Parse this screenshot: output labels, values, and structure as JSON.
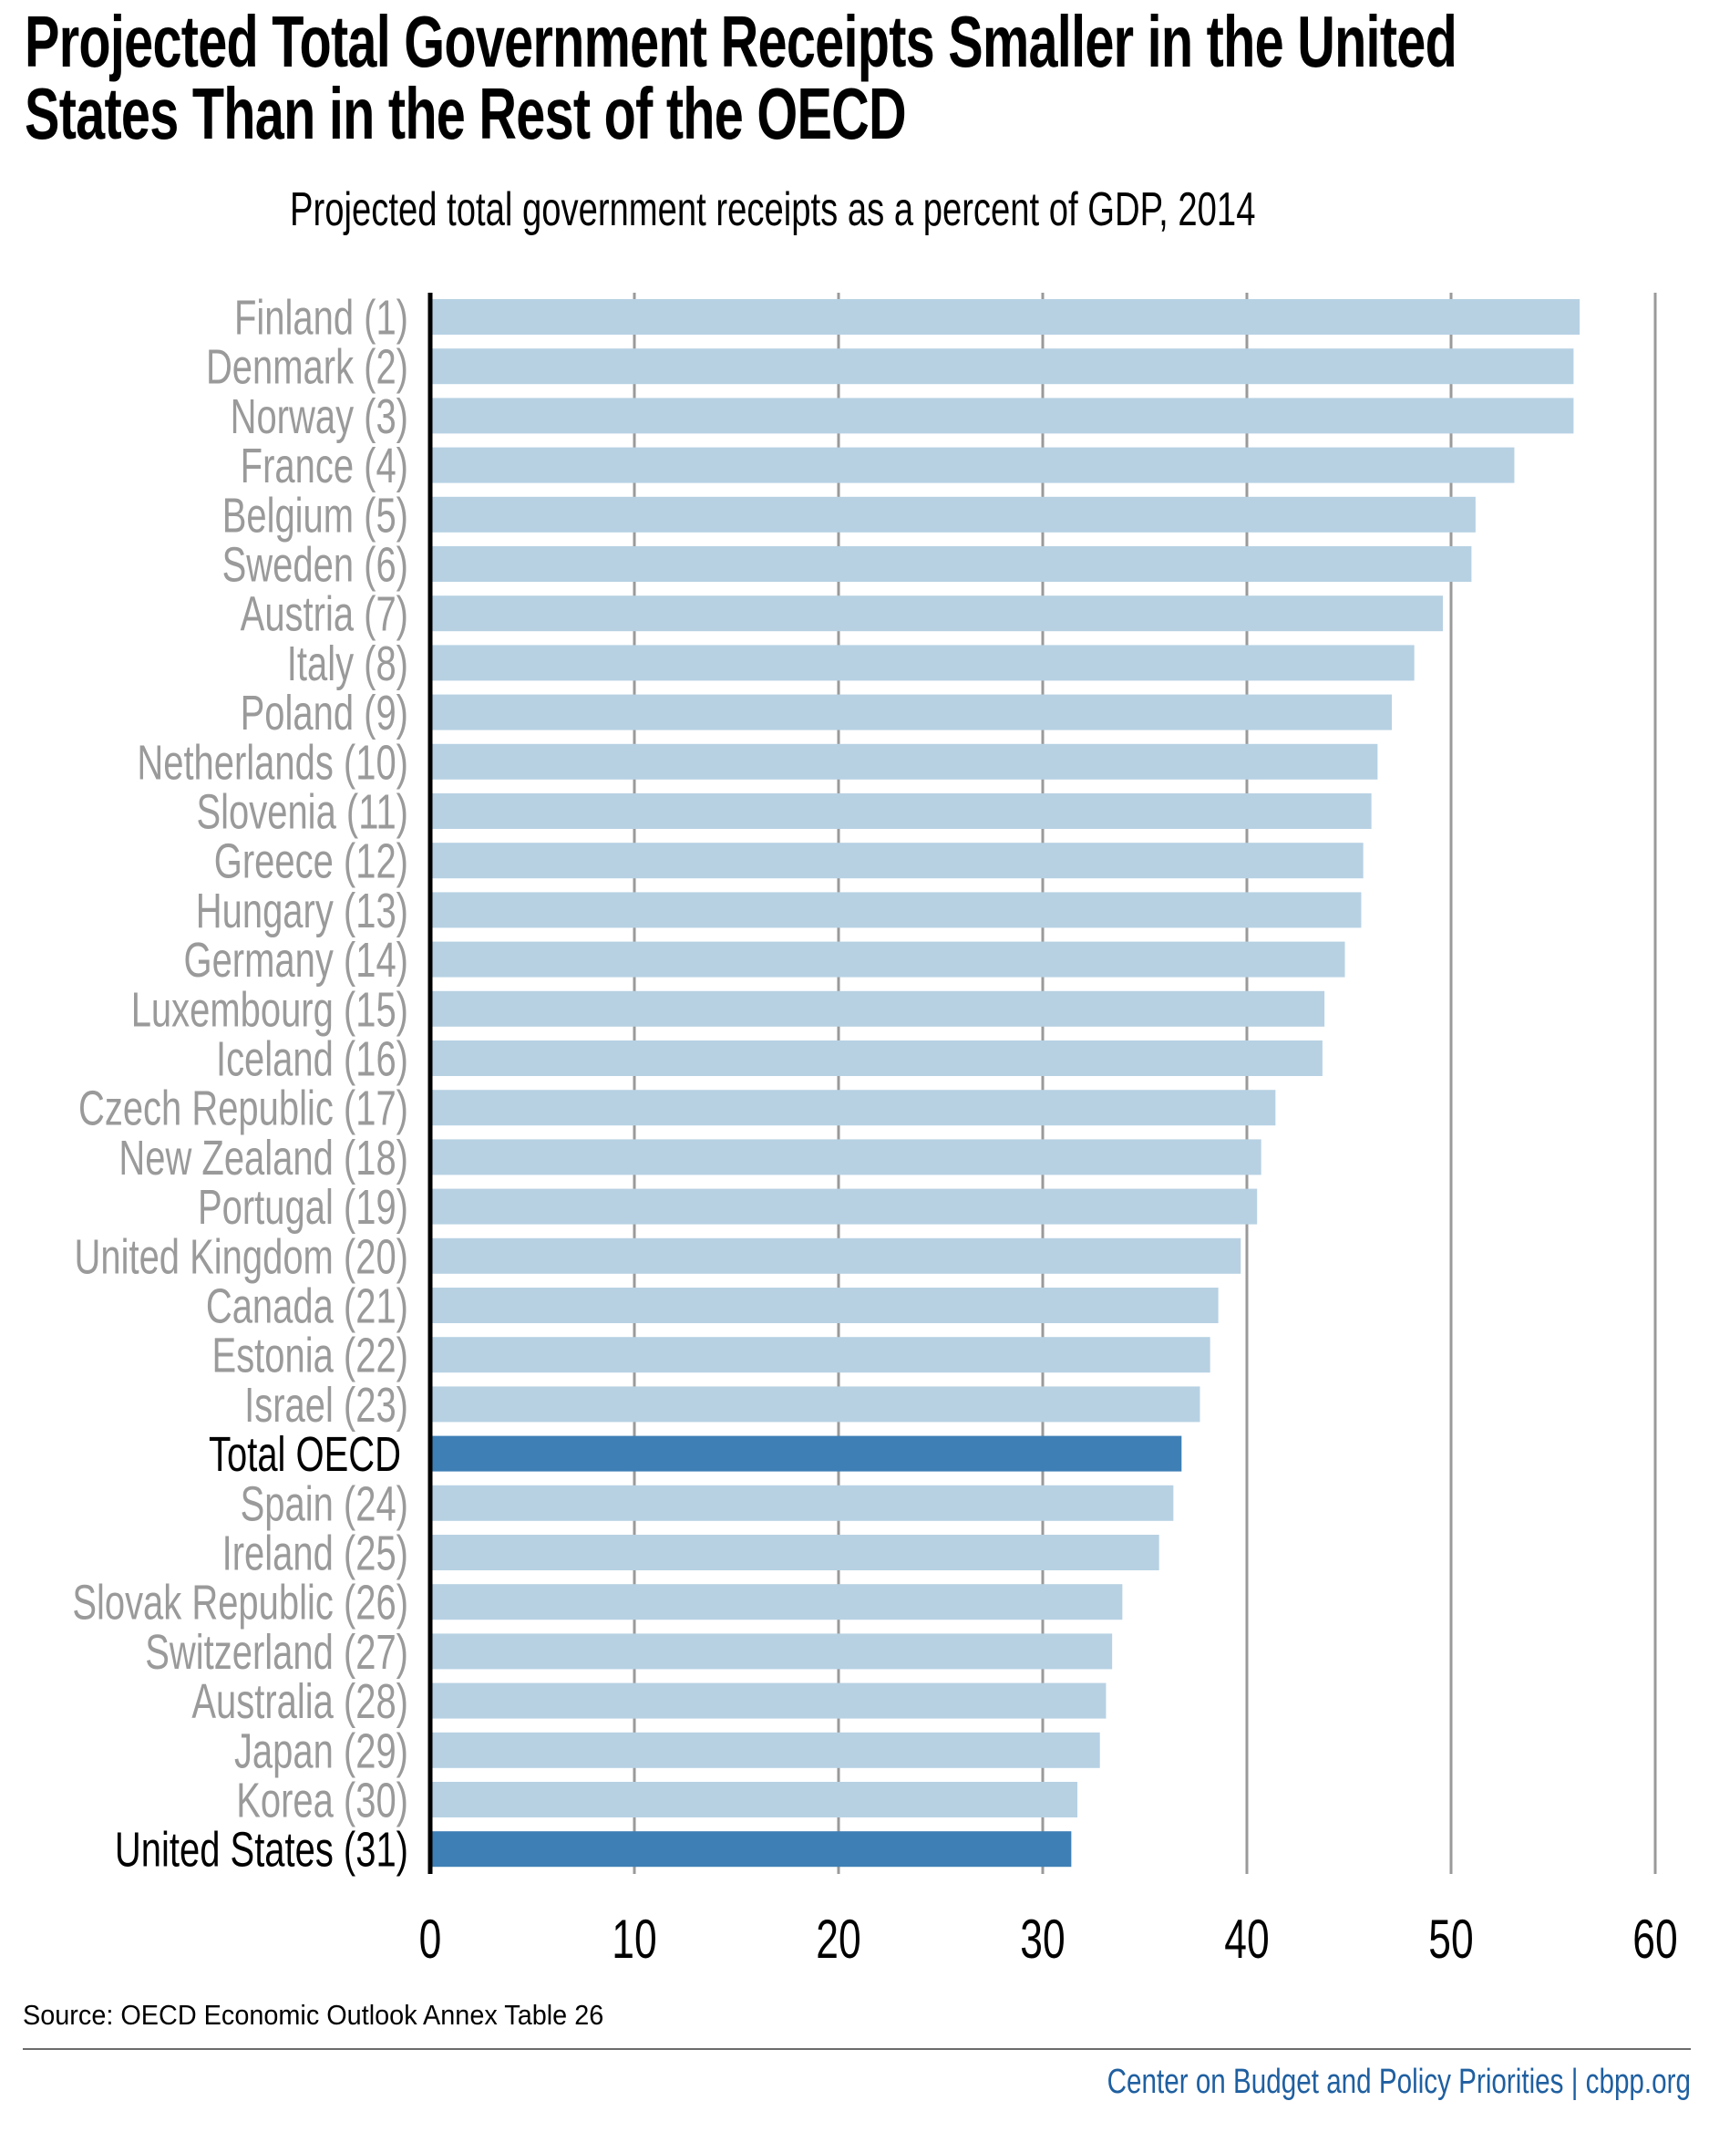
{
  "header": {
    "title_line1": "Projected Total Government Receipts Smaller in the United",
    "title_line2": "States Than in the Rest of the OECD",
    "subtitle": "Projected total government receipts as a percent of GDP, 2014"
  },
  "footer": {
    "source": "Source: OECD Economic Outlook Annex Table 26",
    "credit": "Center on Budget and Policy Priorities | cbpp.org"
  },
  "colors": {
    "bar_default": "#b7d1e3",
    "bar_highlight": "#3e7fb5",
    "label_default": "#9a9a9a",
    "label_highlight": "#000000",
    "gridline": "#9a9a9a",
    "axis": "#000000",
    "credit": "#1f5fa0"
  },
  "chart_data": {
    "type": "bar",
    "orientation": "horizontal",
    "title": "Projected Total Government Receipts Smaller in the United States Than in the Rest of the OECD",
    "subtitle": "Projected total government receipts as a percent of GDP, 2014",
    "xlabel": "",
    "ylabel": "",
    "xlim": [
      0,
      60
    ],
    "xticks": [
      0,
      10,
      20,
      30,
      40,
      50,
      60
    ],
    "grid": true,
    "legend": "none",
    "categories": [
      "Finland (1)",
      "Denmark (2)",
      "Norway (3)",
      "France (4)",
      "Belgium (5)",
      "Sweden (6)",
      "Austria (7)",
      "Italy (8)",
      "Poland (9)",
      "Netherlands (10)",
      "Slovenia (11)",
      "Greece (12)",
      "Hungary (13)",
      "Germany (14)",
      "Luxembourg (15)",
      "Iceland (16)",
      "Czech Republic (17)",
      "New Zealand (18)",
      "Portugal (19)",
      "United Kingdom (20)",
      "Canada (21)",
      "Estonia (22)",
      "Israel (23)",
      "Total OECD",
      "Spain (24)",
      "Ireland (25)",
      "Slovak Republic (26)",
      "Switzerland (27)",
      "Australia (28)",
      "Japan (29)",
      "Korea (30)",
      "United States (31)"
    ],
    "values": [
      56.3,
      56.0,
      56.0,
      53.1,
      51.2,
      51.0,
      49.6,
      48.2,
      47.1,
      46.4,
      46.1,
      45.7,
      45.6,
      44.8,
      43.8,
      43.7,
      41.4,
      40.7,
      40.5,
      39.7,
      38.6,
      38.2,
      37.7,
      36.8,
      36.4,
      35.7,
      33.9,
      33.4,
      33.1,
      32.8,
      31.7,
      31.4
    ],
    "highlighted": [
      "Total OECD",
      "United States (31)"
    ]
  }
}
